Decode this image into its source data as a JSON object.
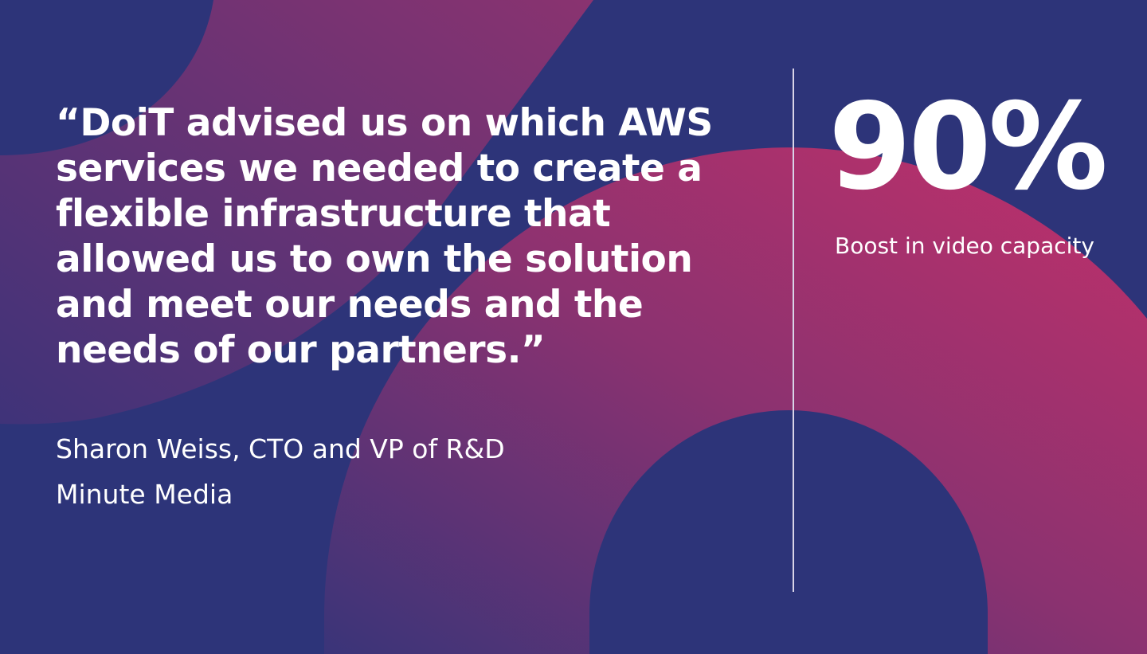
{
  "colors": {
    "background": "#2d3479",
    "accent_pink": "#b5306a",
    "accent_purple": "#5a3478",
    "text": "#ffffff"
  },
  "quote": {
    "lines": [
      "“DoiT advised us on which AWS",
      "services we needed to create a",
      "flexible infrastructure that",
      "allowed us to own the solution",
      "and meet our needs and the",
      "needs of our partners.”"
    ]
  },
  "attribution": {
    "name_title": "Sharon Weiss, CTO and VP of R&D",
    "company": "Minute Media"
  },
  "stat": {
    "value": "90%",
    "label": "Boost in video capacity"
  }
}
